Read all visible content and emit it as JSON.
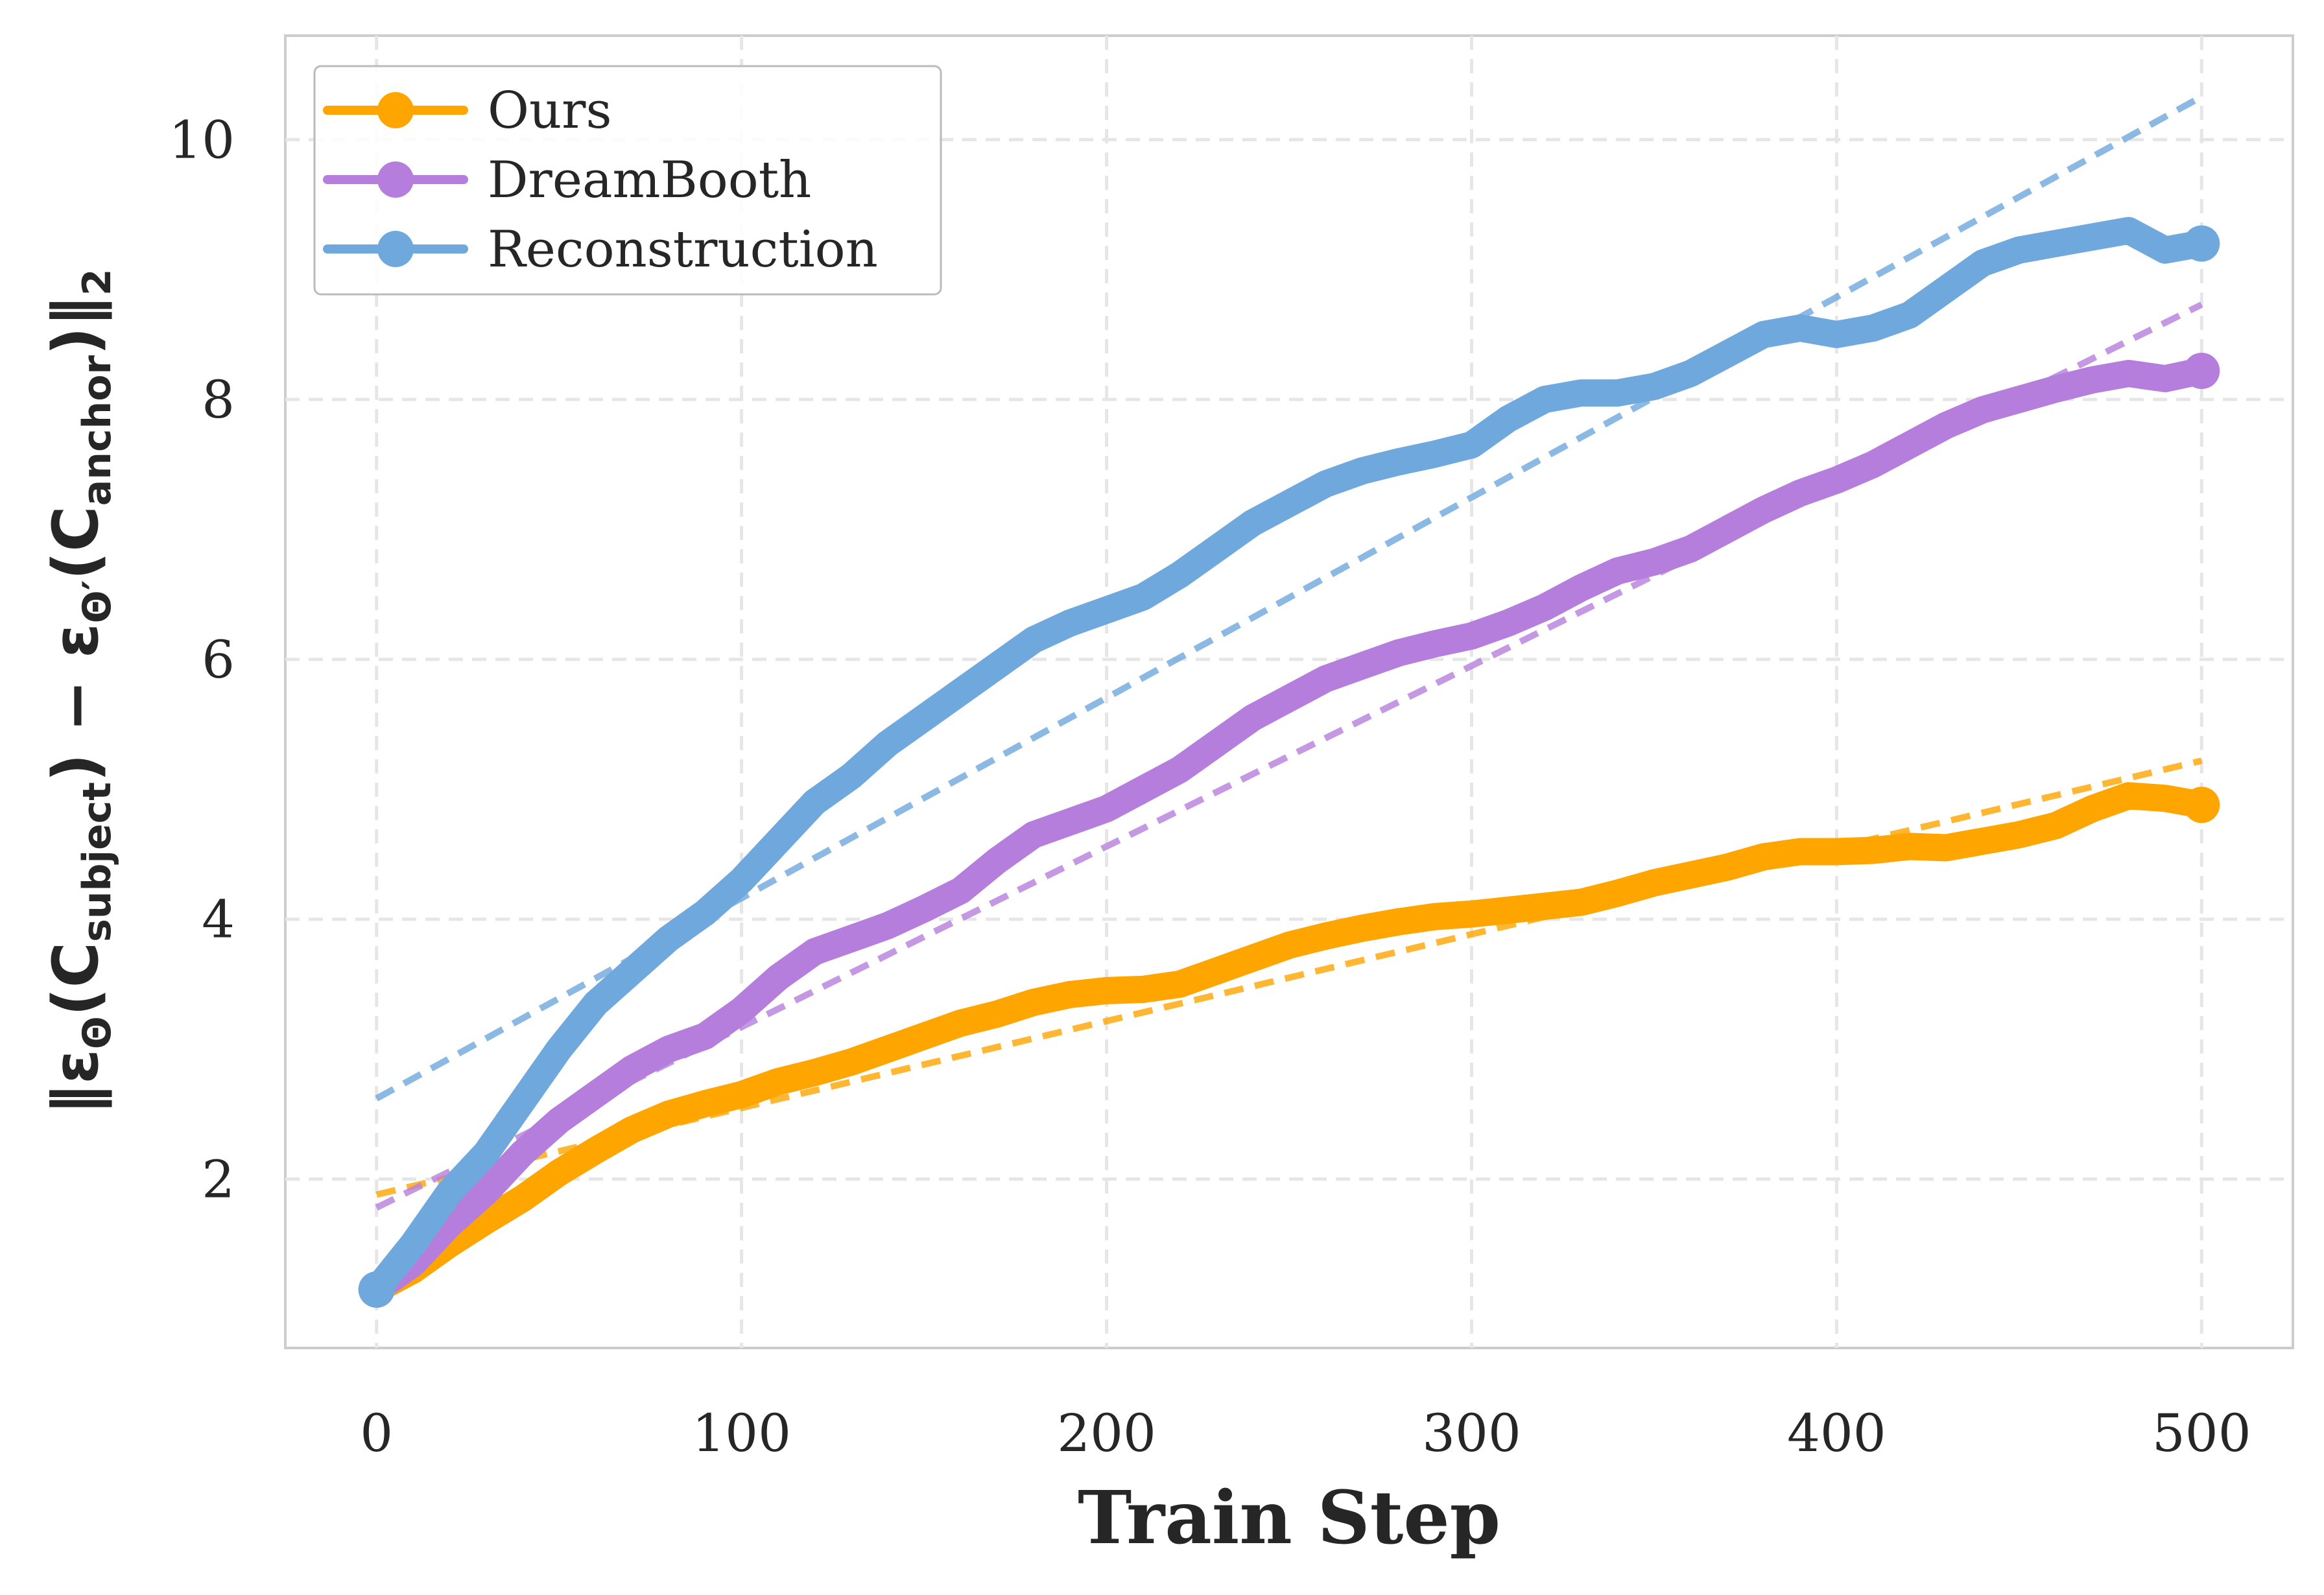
{
  "chart_data": {
    "type": "line",
    "title": "",
    "xlabel": "Train Step",
    "ylabel": "‖εΘ(Csubject) − εΘ′(Canchor)‖₂",
    "ylabel_parts": {
      "open": "‖ε",
      "theta": "Θ",
      "lparen": "(C",
      "subject": "subject",
      "mid": ") − ε",
      "theta_prime": "Θ′",
      "lparen2": "(C",
      "anchor": "anchor",
      "close": ")‖",
      "two": "2"
    },
    "xlim": [
      -25,
      525
    ],
    "ylim": [
      0.7,
      10.8
    ],
    "xticks": [
      0,
      100,
      200,
      300,
      400,
      500
    ],
    "yticks": [
      2,
      4,
      6,
      8,
      10
    ],
    "grid": true,
    "legend_position": "top-left",
    "series": [
      {
        "name": "Ours",
        "color": "#FFA500",
        "x": [
          0,
          10,
          20,
          30,
          40,
          50,
          60,
          70,
          80,
          90,
          100,
          110,
          120,
          130,
          140,
          150,
          160,
          170,
          180,
          190,
          200,
          210,
          220,
          230,
          240,
          250,
          260,
          270,
          280,
          290,
          300,
          310,
          320,
          330,
          340,
          350,
          360,
          370,
          380,
          390,
          400,
          410,
          420,
          430,
          440,
          450,
          460,
          470,
          480,
          490,
          500
        ],
        "y": [
          1.15,
          1.3,
          1.5,
          1.68,
          1.85,
          2.05,
          2.22,
          2.38,
          2.5,
          2.58,
          2.65,
          2.75,
          2.82,
          2.9,
          3.0,
          3.1,
          3.2,
          3.27,
          3.36,
          3.42,
          3.45,
          3.46,
          3.5,
          3.6,
          3.7,
          3.8,
          3.87,
          3.93,
          3.98,
          4.02,
          4.04,
          4.07,
          4.1,
          4.13,
          4.2,
          4.28,
          4.34,
          4.4,
          4.48,
          4.52,
          4.52,
          4.53,
          4.56,
          4.55,
          4.6,
          4.65,
          4.72,
          4.85,
          4.95,
          4.93,
          4.88
        ],
        "trend": [
          1.88,
          5.22
        ]
      },
      {
        "name": "DreamBooth",
        "color": "#B57EDC",
        "x": [
          0,
          10,
          20,
          30,
          40,
          50,
          60,
          70,
          80,
          90,
          100,
          110,
          120,
          130,
          140,
          150,
          160,
          170,
          180,
          190,
          200,
          210,
          220,
          230,
          240,
          250,
          260,
          270,
          280,
          290,
          300,
          310,
          320,
          330,
          340,
          350,
          360,
          370,
          380,
          390,
          400,
          410,
          420,
          430,
          440,
          450,
          460,
          470,
          480,
          490,
          500
        ],
        "y": [
          1.15,
          1.35,
          1.65,
          1.9,
          2.2,
          2.45,
          2.65,
          2.85,
          3.0,
          3.1,
          3.3,
          3.55,
          3.75,
          3.85,
          3.95,
          4.08,
          4.22,
          4.45,
          4.65,
          4.75,
          4.85,
          5.0,
          5.15,
          5.35,
          5.55,
          5.7,
          5.85,
          5.95,
          6.05,
          6.12,
          6.18,
          6.28,
          6.4,
          6.55,
          6.68,
          6.75,
          6.85,
          7.0,
          7.15,
          7.28,
          7.38,
          7.5,
          7.65,
          7.8,
          7.92,
          8.0,
          8.08,
          8.15,
          8.2,
          8.16,
          8.22
        ],
        "trend": [
          1.78,
          8.73
        ]
      },
      {
        "name": "Reconstruction",
        "color": "#6FA8DC",
        "x": [
          0,
          10,
          20,
          30,
          40,
          50,
          60,
          70,
          80,
          90,
          100,
          110,
          120,
          130,
          140,
          150,
          160,
          170,
          180,
          190,
          200,
          210,
          220,
          230,
          240,
          250,
          260,
          270,
          280,
          290,
          300,
          310,
          320,
          330,
          340,
          350,
          360,
          370,
          380,
          390,
          400,
          410,
          420,
          430,
          440,
          450,
          460,
          470,
          480,
          490,
          500
        ],
        "y": [
          1.15,
          1.5,
          1.9,
          2.2,
          2.6,
          3.0,
          3.35,
          3.6,
          3.85,
          4.05,
          4.3,
          4.6,
          4.9,
          5.1,
          5.35,
          5.55,
          5.75,
          5.95,
          6.15,
          6.28,
          6.38,
          6.48,
          6.65,
          6.85,
          7.05,
          7.2,
          7.35,
          7.45,
          7.52,
          7.58,
          7.65,
          7.85,
          8.0,
          8.05,
          8.05,
          8.1,
          8.2,
          8.35,
          8.5,
          8.55,
          8.5,
          8.55,
          8.65,
          8.85,
          9.05,
          9.15,
          9.2,
          9.25,
          9.3,
          9.15,
          9.2
        ],
        "trend": [
          2.62,
          10.33
        ]
      }
    ]
  }
}
